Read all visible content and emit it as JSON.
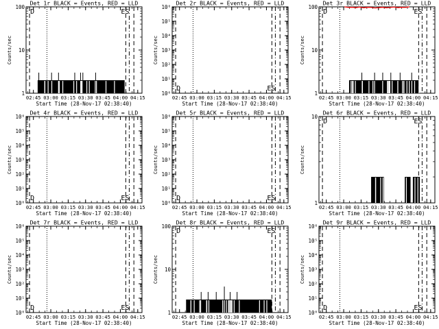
{
  "figure": {
    "title_suffix": " BLACK = Events, RED = LLD",
    "x_label": "Start Time (28-Nov-17 02:38:40)",
    "y_label": "Counts/sec",
    "x_ticks": [
      "02:45",
      "03:00",
      "03:15",
      "03:30",
      "03:45",
      "04:00",
      "04:15"
    ],
    "x_tick_minutes": [
      6.33,
      21.33,
      36.33,
      51.33,
      66.33,
      81.33,
      96.33
    ],
    "x_range_minutes": [
      0,
      100
    ],
    "colors": {
      "events": "#000000",
      "lld": "#ff0000",
      "axis": "#000000",
      "background": "#ffffff"
    }
  },
  "chart_data": [
    {
      "panel": "Det 1r",
      "type": "bar",
      "ylog": true,
      "ylim": [
        1,
        100
      ],
      "y_ticks": [
        "1",
        "10",
        "100"
      ],
      "y_tick_values": [
        1,
        10,
        100
      ],
      "markers": {
        "dotted_min": [
          18
        ],
        "dashed_min": [
          3,
          86,
          93
        ],
        "dashdot_min": [
          89
        ],
        "text_left": "D",
        "text_right": "ES",
        "text_y": "top"
      },
      "events": {
        "range_min": [
          10,
          85
        ],
        "base": 2,
        "spikes": [
          [
            11,
            3
          ],
          [
            22,
            3
          ],
          [
            28,
            3
          ],
          [
            42,
            3
          ],
          [
            47,
            3
          ],
          [
            49,
            3
          ],
          [
            60,
            3
          ]
        ],
        "white_bars": 18
      },
      "lld": null
    },
    {
      "panel": "Det 2r",
      "type": "bar",
      "ylog": true,
      "ylim": [
        1,
        1000000
      ],
      "y_ticks": [
        "10⁰",
        "10¹",
        "10²",
        "10³",
        "10⁴",
        "10⁵",
        "10⁶"
      ],
      "y_tick_values": [
        1,
        10,
        100,
        1000,
        10000,
        100000,
        1000000
      ],
      "markers": {
        "dotted_min": [
          18
        ],
        "dashed_min": [
          3,
          86,
          93
        ],
        "dashdot_min": [
          89
        ],
        "text_left": "D",
        "text_right": "ES",
        "text_y": "bottom"
      },
      "events": null,
      "lld": null
    },
    {
      "panel": "Det 3r",
      "type": "bar",
      "ylog": true,
      "ylim": [
        1,
        100
      ],
      "y_ticks": [
        "1",
        "10",
        "100"
      ],
      "y_tick_values": [
        1,
        10,
        100
      ],
      "markers": {
        "dotted_min": [
          18
        ],
        "dashed_min": [
          3,
          86,
          93
        ],
        "dashdot_min": [
          89
        ],
        "text_left": "D",
        "text_right": "ES",
        "text_y": "top"
      },
      "events": {
        "range_min": [
          26,
          86
        ],
        "base": 2,
        "spikes": [
          [
            37,
            3
          ],
          [
            48,
            3
          ],
          [
            55,
            3
          ],
          [
            62,
            3
          ],
          [
            70,
            3
          ],
          [
            80,
            3
          ]
        ],
        "white_bars": 26
      },
      "lld": {
        "range_min": [
          22,
          78
        ],
        "values": [
          100,
          97,
          98,
          96,
          99,
          95,
          98,
          97,
          94,
          96,
          98,
          95,
          97,
          99,
          96,
          98,
          97,
          100
        ]
      }
    },
    {
      "panel": "Det 4r",
      "type": "bar",
      "ylog": true,
      "ylim": [
        1,
        1000000
      ],
      "y_ticks": [
        "10⁰",
        "10¹",
        "10²",
        "10³",
        "10⁴",
        "10⁵",
        "10⁶"
      ],
      "y_tick_values": [
        1,
        10,
        100,
        1000,
        10000,
        100000,
        1000000
      ],
      "markers": {
        "dotted_min": [
          18
        ],
        "dashed_min": [
          3,
          86,
          93
        ],
        "dashdot_min": [
          89
        ],
        "text_left": "D",
        "text_right": "ES",
        "text_y": "bottom"
      },
      "events": null,
      "lld": null
    },
    {
      "panel": "Det 5r",
      "type": "bar",
      "ylog": true,
      "ylim": [
        1,
        1000000
      ],
      "y_ticks": [
        "10⁰",
        "10¹",
        "10²",
        "10³",
        "10⁴",
        "10⁵",
        "10⁶"
      ],
      "y_tick_values": [
        1,
        10,
        100,
        1000,
        10000,
        100000,
        1000000
      ],
      "markers": {
        "dotted_min": [
          18
        ],
        "dashed_min": [
          3,
          86,
          93
        ],
        "dashdot_min": [
          89
        ],
        "text_left": "D",
        "text_right": "ES",
        "text_y": "bottom"
      },
      "events": null,
      "lld": null
    },
    {
      "panel": "Det 6r",
      "type": "bar",
      "ylog": true,
      "ylim": [
        1,
        10
      ],
      "y_ticks": [
        "1",
        "10"
      ],
      "y_tick_values": [
        1,
        10
      ],
      "markers": {
        "dotted_min": [
          18
        ],
        "dashed_min": [
          3,
          86,
          93
        ],
        "dashdot_min": [
          89
        ],
        "text_left": "D",
        "text_right": "ES",
        "text_y": "top"
      },
      "events": {
        "range_min": [
          45,
          87
        ],
        "base": 2,
        "spikes": [],
        "white_bars": 12,
        "gaps_min": [
          [
            56,
            74
          ],
          [
            79,
            81
          ]
        ]
      },
      "lld": null
    },
    {
      "panel": "Det 7r",
      "type": "bar",
      "ylog": true,
      "ylim": [
        1,
        1000000
      ],
      "y_ticks": [
        "10⁰",
        "10¹",
        "10²",
        "10³",
        "10⁴",
        "10⁵",
        "10⁶"
      ],
      "y_tick_values": [
        1,
        10,
        100,
        1000,
        10000,
        100000,
        1000000
      ],
      "markers": {
        "dotted_min": [
          18
        ],
        "dashed_min": [
          3,
          86,
          93
        ],
        "dashdot_min": [
          89
        ],
        "text_left": "D",
        "text_right": "ES",
        "text_y": "bottom"
      },
      "events": null,
      "lld": null
    },
    {
      "panel": "Det 8r",
      "type": "bar",
      "ylog": true,
      "ylim": [
        1,
        100
      ],
      "y_ticks": [
        "1",
        "10",
        "100"
      ],
      "y_tick_values": [
        1,
        10,
        100
      ],
      "markers": {
        "dotted_min": [
          18
        ],
        "dashed_min": [
          3,
          86,
          93
        ],
        "dashdot_min": [
          89
        ],
        "text_left": "D",
        "text_right": "ES",
        "text_y": "top"
      },
      "events": {
        "range_min": [
          12,
          86
        ],
        "base": 2,
        "spikes": [
          [
            25,
            3
          ],
          [
            31,
            3
          ],
          [
            38,
            3
          ],
          [
            45,
            4
          ],
          [
            50,
            3
          ],
          [
            56,
            3
          ]
        ],
        "white_bars": 22
      },
      "lld": null
    },
    {
      "panel": "Det 9r",
      "type": "bar",
      "ylog": true,
      "ylim": [
        1,
        1000000
      ],
      "y_ticks": [
        "10⁰",
        "10¹",
        "10²",
        "10³",
        "10⁴",
        "10⁵",
        "10⁶"
      ],
      "y_tick_values": [
        1,
        10,
        100,
        1000,
        10000,
        100000,
        1000000
      ],
      "markers": {
        "dotted_min": [
          18
        ],
        "dashed_min": [
          3,
          86,
          93
        ],
        "dashdot_min": [
          89
        ],
        "text_left": "D",
        "text_right": "ES",
        "text_y": "bottom"
      },
      "events": null,
      "lld": null
    }
  ]
}
